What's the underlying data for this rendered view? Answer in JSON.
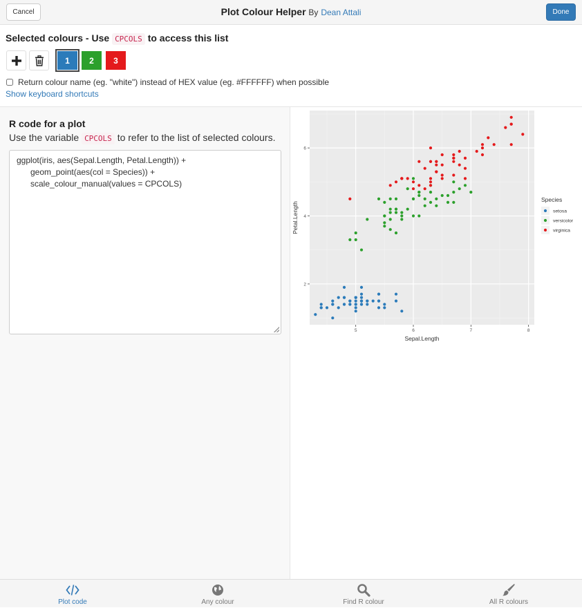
{
  "header": {
    "cancel_label": "Cancel",
    "title": "Plot Colour Helper",
    "by": "By",
    "author": "Dean Attali",
    "done_label": "Done"
  },
  "selected": {
    "heading_pre": "Selected colours - Use",
    "heading_code": "CPCOLS",
    "heading_post": "to access this list",
    "add_icon": "plus-icon",
    "delete_icon": "trash-icon",
    "colours": [
      {
        "label": "1",
        "color": "#2b7bba"
      },
      {
        "label": "2",
        "color": "#2ca02c"
      },
      {
        "label": "3",
        "color": "#e41a1c"
      }
    ],
    "active_index": 0,
    "return_label": "Return colour name (eg. \"white\") instead of HEX value (eg. #FFFFFF) when possible",
    "shortcuts_label": "Show keyboard shortcuts"
  },
  "rcode": {
    "title": "R code for a plot",
    "desc_pre": "Use the variable",
    "desc_code": "CPCOLS",
    "desc_post": "to refer to the list of selected colours.",
    "lines": [
      "ggplot(iris, aes(Sepal.Length, Petal.Length)) +",
      "geom_point(aes(col = Species)) +",
      "scale_colour_manual(values = CPCOLS)"
    ]
  },
  "chart_data": {
    "type": "scatter",
    "title": "",
    "xlabel": "Sepal.Length",
    "ylabel": "Petal.Length",
    "xlim": [
      4.2,
      8.1
    ],
    "ylim": [
      0.8,
      7.1
    ],
    "xticks": [
      5,
      6,
      7,
      8
    ],
    "yticks": [
      2,
      4,
      6
    ],
    "grid": true,
    "legend_title": "Species",
    "legend_position": "right",
    "series": [
      {
        "name": "setosa",
        "color": "#2b7bba",
        "x": [
          5.1,
          4.9,
          4.7,
          4.6,
          5.0,
          5.4,
          4.6,
          5.0,
          4.4,
          4.9,
          5.4,
          4.8,
          4.8,
          4.3,
          5.8,
          5.7,
          5.4,
          5.1,
          5.7,
          5.1,
          5.4,
          5.1,
          4.6,
          5.1,
          4.8,
          5.0,
          5.0,
          5.2,
          5.2,
          4.7,
          4.8,
          5.4,
          5.2,
          5.5,
          4.9,
          5.0,
          5.5,
          4.9,
          4.4,
          5.1,
          5.0,
          4.5,
          4.4,
          5.0,
          5.1,
          4.8,
          5.1,
          4.6,
          5.3,
          5.0
        ],
        "y": [
          1.4,
          1.4,
          1.3,
          1.5,
          1.4,
          1.7,
          1.4,
          1.5,
          1.4,
          1.5,
          1.5,
          1.6,
          1.4,
          1.1,
          1.2,
          1.5,
          1.3,
          1.4,
          1.7,
          1.5,
          1.7,
          1.5,
          1.0,
          1.7,
          1.9,
          1.6,
          1.6,
          1.5,
          1.4,
          1.6,
          1.6,
          1.5,
          1.5,
          1.4,
          1.5,
          1.2,
          1.3,
          1.4,
          1.3,
          1.5,
          1.3,
          1.3,
          1.3,
          1.6,
          1.9,
          1.4,
          1.6,
          1.4,
          1.5,
          1.4
        ]
      },
      {
        "name": "versicolor",
        "color": "#2ca02c",
        "x": [
          7.0,
          6.4,
          6.9,
          5.5,
          6.5,
          5.7,
          6.3,
          4.9,
          6.6,
          5.2,
          5.0,
          5.9,
          6.0,
          6.1,
          5.6,
          6.7,
          5.6,
          5.8,
          6.2,
          5.6,
          5.9,
          6.1,
          6.3,
          6.1,
          6.4,
          6.6,
          6.8,
          6.7,
          6.0,
          5.7,
          5.5,
          5.5,
          5.8,
          6.0,
          5.4,
          6.0,
          6.7,
          6.3,
          5.6,
          5.5,
          5.5,
          6.1,
          5.8,
          5.0,
          5.6,
          5.7,
          5.7,
          6.2,
          5.1,
          5.7
        ],
        "y": [
          4.7,
          4.5,
          4.9,
          4.0,
          4.6,
          4.5,
          4.7,
          3.3,
          4.6,
          3.9,
          3.5,
          4.2,
          4.0,
          4.7,
          3.6,
          4.4,
          4.5,
          4.1,
          4.5,
          3.9,
          4.8,
          4.0,
          4.9,
          4.7,
          4.3,
          4.4,
          4.8,
          5.0,
          4.5,
          3.5,
          3.8,
          3.7,
          3.9,
          5.1,
          4.5,
          4.5,
          4.7,
          4.4,
          4.1,
          4.0,
          4.4,
          4.6,
          4.0,
          3.3,
          4.2,
          4.2,
          4.2,
          4.3,
          3.0,
          4.1
        ]
      },
      {
        "name": "virginica",
        "color": "#e41a1c",
        "x": [
          6.3,
          5.8,
          7.1,
          6.3,
          6.5,
          7.6,
          4.9,
          7.3,
          6.7,
          7.2,
          6.5,
          6.4,
          6.8,
          5.7,
          5.8,
          6.4,
          6.5,
          7.7,
          7.7,
          6.0,
          6.9,
          5.6,
          7.7,
          6.3,
          6.7,
          7.2,
          6.2,
          6.1,
          6.4,
          7.2,
          7.4,
          7.9,
          6.4,
          6.3,
          6.1,
          7.7,
          6.3,
          6.4,
          6.0,
          6.9,
          6.7,
          6.9,
          5.8,
          6.8,
          6.7,
          6.7,
          6.3,
          6.5,
          6.2,
          5.9
        ],
        "y": [
          6.0,
          5.1,
          5.9,
          5.6,
          5.8,
          6.6,
          4.5,
          6.3,
          5.8,
          6.1,
          5.1,
          5.3,
          5.5,
          5.0,
          5.1,
          5.3,
          5.5,
          6.7,
          6.9,
          5.0,
          5.7,
          4.9,
          6.7,
          4.9,
          5.7,
          6.0,
          4.8,
          4.9,
          5.6,
          5.8,
          6.1,
          6.4,
          5.6,
          5.1,
          5.6,
          6.1,
          5.6,
          5.5,
          4.8,
          5.4,
          5.6,
          5.1,
          5.1,
          5.9,
          5.7,
          5.2,
          5.0,
          5.2,
          5.4,
          5.1
        ]
      }
    ]
  },
  "nav": {
    "items": [
      {
        "label": "Plot code",
        "icon": "code-icon"
      },
      {
        "label": "Any colour",
        "icon": "globe-icon"
      },
      {
        "label": "Find R colour",
        "icon": "search-icon"
      },
      {
        "label": "All R colours",
        "icon": "paintbrush-icon"
      }
    ],
    "active_index": 0
  }
}
